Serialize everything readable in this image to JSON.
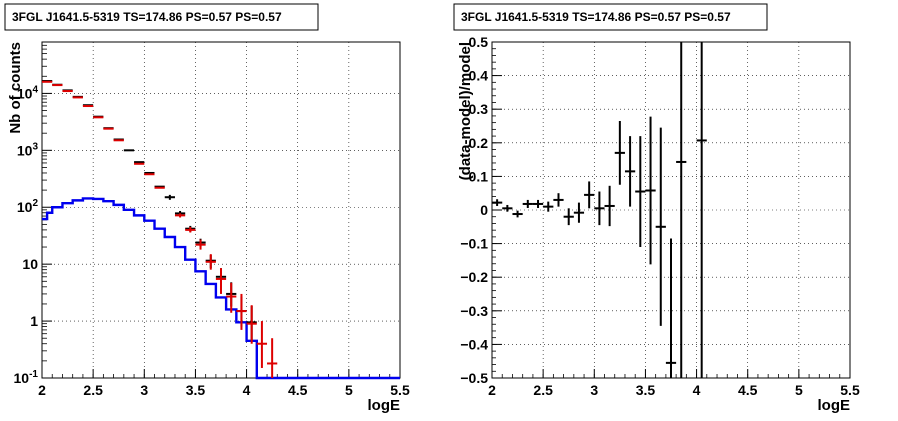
{
  "chart_data": [
    {
      "type": "step+errorbar",
      "title": "3FGL J1641.5-5319 TS=174.86 PS=0.57 PS=0.57",
      "xlabel": "logE",
      "ylabel": "Nb of counts",
      "xlim": [
        2,
        5.5
      ],
      "ylim": [
        0.1,
        80000
      ],
      "yscale": "log",
      "grid": true,
      "x_ticks": [
        "2",
        "2.5",
        "3",
        "3.5",
        "4",
        "4.5",
        "5",
        "5.5"
      ],
      "y_ticks": [
        {
          "value": 0.1,
          "label": "10",
          "sup": "-1"
        },
        {
          "value": 1,
          "label": "1",
          "sup": ""
        },
        {
          "value": 10,
          "label": "10",
          "sup": ""
        },
        {
          "value": 100,
          "label": "10",
          "sup": "2"
        },
        {
          "value": 1000,
          "label": "10",
          "sup": "3"
        },
        {
          "value": 10000,
          "label": "10",
          "sup": "4"
        }
      ],
      "bin_width": 0.1,
      "model_color": "#0000ee",
      "data_color": "#dd0000",
      "ref_color": "#000000",
      "model_line": {
        "name": "",
        "x": [
          2.0,
          2.05,
          2.15,
          2.25,
          2.35,
          2.45,
          2.55,
          2.65,
          2.75,
          2.85,
          2.95,
          3.05,
          3.15,
          3.25,
          3.35,
          3.45,
          3.55,
          3.65,
          3.75,
          3.85,
          3.95,
          4.05,
          4.15,
          4.25,
          4.5,
          5.0,
          5.5
        ],
        "y": [
          62,
          80,
          100,
          118,
          132,
          143,
          140,
          128,
          110,
          90,
          72,
          58,
          42,
          30,
          20,
          12,
          7.5,
          4.5,
          2.6,
          1.6,
          0.95,
          0.45,
          0.1,
          0.1,
          0.1,
          0.1,
          0.1
        ]
      },
      "data_points": {
        "name": "",
        "x": [
          2.05,
          2.15,
          2.25,
          2.35,
          2.45,
          2.55,
          2.65,
          2.75,
          2.95,
          3.05,
          3.15,
          3.35,
          3.45,
          3.55,
          3.65,
          3.75,
          3.85,
          3.95,
          4.05,
          4.15,
          4.25
        ],
        "y": [
          16000,
          14000,
          11000,
          8500,
          6000,
          3800,
          2400,
          1500,
          580,
          380,
          220,
          72,
          40,
          22,
          11,
          5.5,
          2.7,
          1.5,
          0.9,
          0.4,
          0.18
        ],
        "err_low": [
          0,
          0,
          0,
          0,
          0,
          0,
          0,
          0,
          0,
          0,
          0,
          6,
          4,
          4,
          3,
          2.5,
          1.3,
          0.8,
          0.5,
          0.25,
          0.08
        ],
        "err_high": [
          0,
          0,
          0,
          0,
          0,
          0,
          0,
          0,
          0,
          0,
          0,
          6,
          5,
          5,
          4,
          3,
          2,
          1.5,
          1,
          0.6,
          0.32
        ]
      },
      "reference_points": {
        "name": "",
        "x": [
          2.05,
          2.15,
          2.25,
          2.35,
          2.45,
          2.55,
          2.65,
          2.75,
          2.85,
          2.95,
          3.05,
          3.15,
          3.25,
          3.35,
          3.45,
          3.55,
          3.65,
          3.75,
          3.85,
          3.95,
          4.05
        ],
        "y": [
          16500,
          14200,
          11300,
          8700,
          6200,
          3900,
          2450,
          1550,
          1000,
          620,
          400,
          230,
          150,
          78,
          42,
          24,
          11.5,
          6,
          3,
          1.5,
          0.95
        ],
        "err_low": [
          0,
          0,
          0,
          0,
          0,
          0,
          0,
          0,
          0,
          0,
          0,
          0,
          15,
          8,
          5,
          4,
          3,
          2,
          1.2,
          0.7,
          0.5
        ],
        "err_high": [
          0,
          0,
          0,
          0,
          0,
          0,
          0,
          0,
          0,
          0,
          0,
          0,
          15,
          8,
          5,
          4,
          3,
          2.5,
          1.8,
          1.2,
          0.9
        ]
      }
    },
    {
      "type": "errorbar",
      "title": "3FGL J1641.5-5319 TS=174.86 PS=0.57 PS=0.57",
      "xlabel": "logE",
      "ylabel": "(data-model)/model",
      "xlim": [
        2,
        5.5
      ],
      "ylim": [
        -0.5,
        0.5
      ],
      "yscale": "linear",
      "grid": true,
      "x_ticks": [
        "2",
        "2.5",
        "3",
        "3.5",
        "4",
        "4.5",
        "5",
        "5.5"
      ],
      "y_ticks": [
        "-0.5",
        "-0.4",
        "-0.3",
        "-0.2",
        "-0.1",
        "0",
        "0.1",
        "0.2",
        "0.3",
        "0.4",
        "0.5"
      ],
      "bin_width": 0.1,
      "color": "#000000",
      "residuals": {
        "name": "",
        "x": [
          2.05,
          2.15,
          2.25,
          2.35,
          2.45,
          2.55,
          2.65,
          2.75,
          2.85,
          2.95,
          3.05,
          3.15,
          3.25,
          3.35,
          3.45,
          3.55,
          3.65,
          3.75,
          3.85,
          4.05
        ],
        "y": [
          0.022,
          0.005,
          -0.012,
          0.018,
          0.018,
          0.01,
          0.03,
          -0.02,
          -0.008,
          0.045,
          0.005,
          0.012,
          0.17,
          0.115,
          0.055,
          0.058,
          -0.05,
          -0.455,
          0.143,
          0.207
        ],
        "err": [
          0.01,
          0.01,
          0.01,
          0.012,
          0.012,
          0.015,
          0.02,
          0.025,
          0.03,
          0.04,
          0.05,
          0.06,
          0.095,
          0.105,
          0.165,
          0.22,
          0.295,
          0.37,
          0.7,
          0.75
        ]
      }
    }
  ]
}
